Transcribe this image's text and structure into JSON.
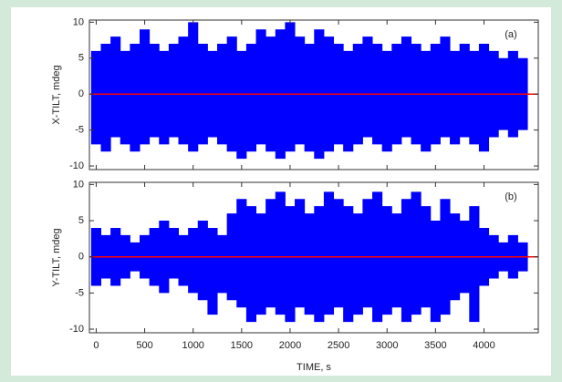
{
  "chart_data": [
    {
      "type": "envelope",
      "panel_label": "(a)",
      "ylabel": "X-TILT, mdeg",
      "color": "#0000ff",
      "x": [
        0,
        100,
        200,
        300,
        400,
        500,
        600,
        700,
        800,
        900,
        1000,
        1100,
        1200,
        1300,
        1400,
        1500,
        1600,
        1700,
        1800,
        1900,
        2000,
        2100,
        2200,
        2300,
        2400,
        2500,
        2600,
        2700,
        2800,
        2900,
        3000,
        3100,
        3200,
        3300,
        3400,
        3500,
        3600,
        3700,
        3800,
        3900,
        4000,
        4100,
        4200,
        4300,
        4400
      ],
      "upper": [
        6,
        7,
        8,
        6,
        7,
        9,
        7,
        6,
        7,
        8,
        10,
        7,
        6,
        7,
        8,
        6,
        7,
        9,
        8,
        9,
        10,
        8,
        7,
        9,
        8,
        7,
        6,
        7,
        8,
        7,
        6,
        7,
        8,
        7,
        6,
        7,
        8,
        6,
        7,
        6,
        7,
        6,
        5,
        6,
        5
      ],
      "lower": [
        -7,
        -8,
        -6,
        -7,
        -8,
        -7,
        -6,
        -7,
        -6,
        -7,
        -8,
        -7,
        -6,
        -7,
        -8,
        -9,
        -8,
        -7,
        -8,
        -9,
        -8,
        -7,
        -8,
        -9,
        -8,
        -7,
        -8,
        -7,
        -6,
        -7,
        -8,
        -7,
        -6,
        -7,
        -8,
        -7,
        -6,
        -7,
        -6,
        -7,
        -8,
        -6,
        -5,
        -6,
        -5
      ],
      "reference_line": {
        "value": 0,
        "color": "#ff0000"
      },
      "xlim": [
        -70,
        4560
      ],
      "ylim": [
        -10.5,
        10.3
      ],
      "yticks": [
        -10,
        -5,
        0,
        5,
        10
      ],
      "xticks": [
        0,
        500,
        1000,
        1500,
        2000,
        2500,
        3000,
        3500,
        4000
      ],
      "show_xtick_labels": false
    },
    {
      "type": "envelope",
      "panel_label": "(b)",
      "ylabel": "Y-TILT, mdeg",
      "xlabel": "TIME, s",
      "color": "#0000ff",
      "x": [
        0,
        100,
        200,
        300,
        400,
        500,
        600,
        700,
        800,
        900,
        1000,
        1100,
        1200,
        1300,
        1400,
        1500,
        1600,
        1700,
        1800,
        1900,
        2000,
        2100,
        2200,
        2300,
        2400,
        2500,
        2600,
        2700,
        2800,
        2900,
        3000,
        3100,
        3200,
        3300,
        3400,
        3500,
        3600,
        3700,
        3800,
        3900,
        4000,
        4100,
        4200,
        4300,
        4400
      ],
      "upper": [
        4,
        3,
        4,
        3,
        2,
        3,
        4,
        5,
        4,
        3,
        4,
        5,
        4,
        3,
        6,
        8,
        7,
        6,
        8,
        9,
        7,
        8,
        6,
        7,
        9,
        8,
        7,
        6,
        8,
        9,
        7,
        6,
        8,
        9,
        7,
        5,
        8,
        6,
        5,
        7,
        4,
        3,
        2,
        3,
        2
      ],
      "lower": [
        -4,
        -3,
        -4,
        -3,
        -2,
        -3,
        -4,
        -5,
        -3,
        -4,
        -5,
        -6,
        -8,
        -5,
        -6,
        -7,
        -9,
        -8,
        -7,
        -8,
        -9,
        -7,
        -8,
        -9,
        -8,
        -7,
        -9,
        -8,
        -7,
        -9,
        -8,
        -7,
        -9,
        -8,
        -7,
        -9,
        -8,
        -6,
        -5,
        -9,
        -4,
        -3,
        -2,
        -3,
        -2
      ],
      "reference_line": {
        "value": 0,
        "color": "#ff0000"
      },
      "xlim": [
        -70,
        4560
      ],
      "ylim": [
        -10.5,
        10.3
      ],
      "yticks": [
        -10,
        -5,
        0,
        5,
        10
      ],
      "xticks": [
        0,
        500,
        1000,
        1500,
        2000,
        2500,
        3000,
        3500,
        4000
      ],
      "show_xtick_labels": true
    }
  ]
}
